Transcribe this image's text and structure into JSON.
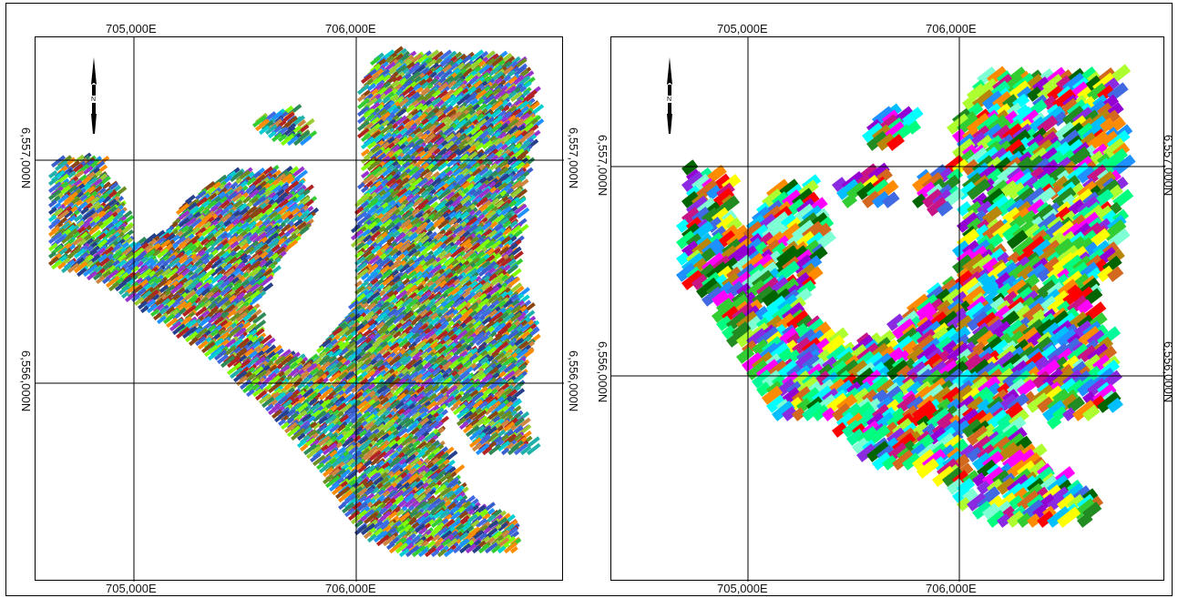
{
  "figure": {
    "panels": [
      {
        "id": "left",
        "grid_labels": {
          "easting": [
            "705,000E",
            "706,000E"
          ],
          "northing": [
            "6,557,000N",
            "6,556,000N"
          ]
        },
        "palette": [
          "#3a5fcd",
          "#27408b",
          "#4169e1",
          "#32cd32",
          "#7fff00",
          "#9acd32",
          "#00ced1",
          "#20b2aa",
          "#ff8c00",
          "#cd853f",
          "#8b4513",
          "#6b8e23",
          "#2e8b57",
          "#1e90ff",
          "#b22222",
          "#9932cc"
        ],
        "style": "dense-thin-strips"
      },
      {
        "id": "right",
        "grid_labels": {
          "easting": [
            "705,000E",
            "706,000E"
          ],
          "northing": [
            "6,557,000N",
            "6,556,000N"
          ]
        },
        "palette": [
          "#00bfff",
          "#1e90ff",
          "#00ffff",
          "#7fffd4",
          "#32cd32",
          "#00ff7f",
          "#228b22",
          "#006400",
          "#ff0000",
          "#ff00ff",
          "#c71585",
          "#9400d3",
          "#8a2be2",
          "#ffff00",
          "#adff2f",
          "#ff8c00",
          "#d2691e",
          "#b8860b",
          "#4169e1",
          "#00fa9a"
        ],
        "style": "coarse-blocks"
      }
    ],
    "north_arrow_icon": "north-arrow-icon"
  }
}
